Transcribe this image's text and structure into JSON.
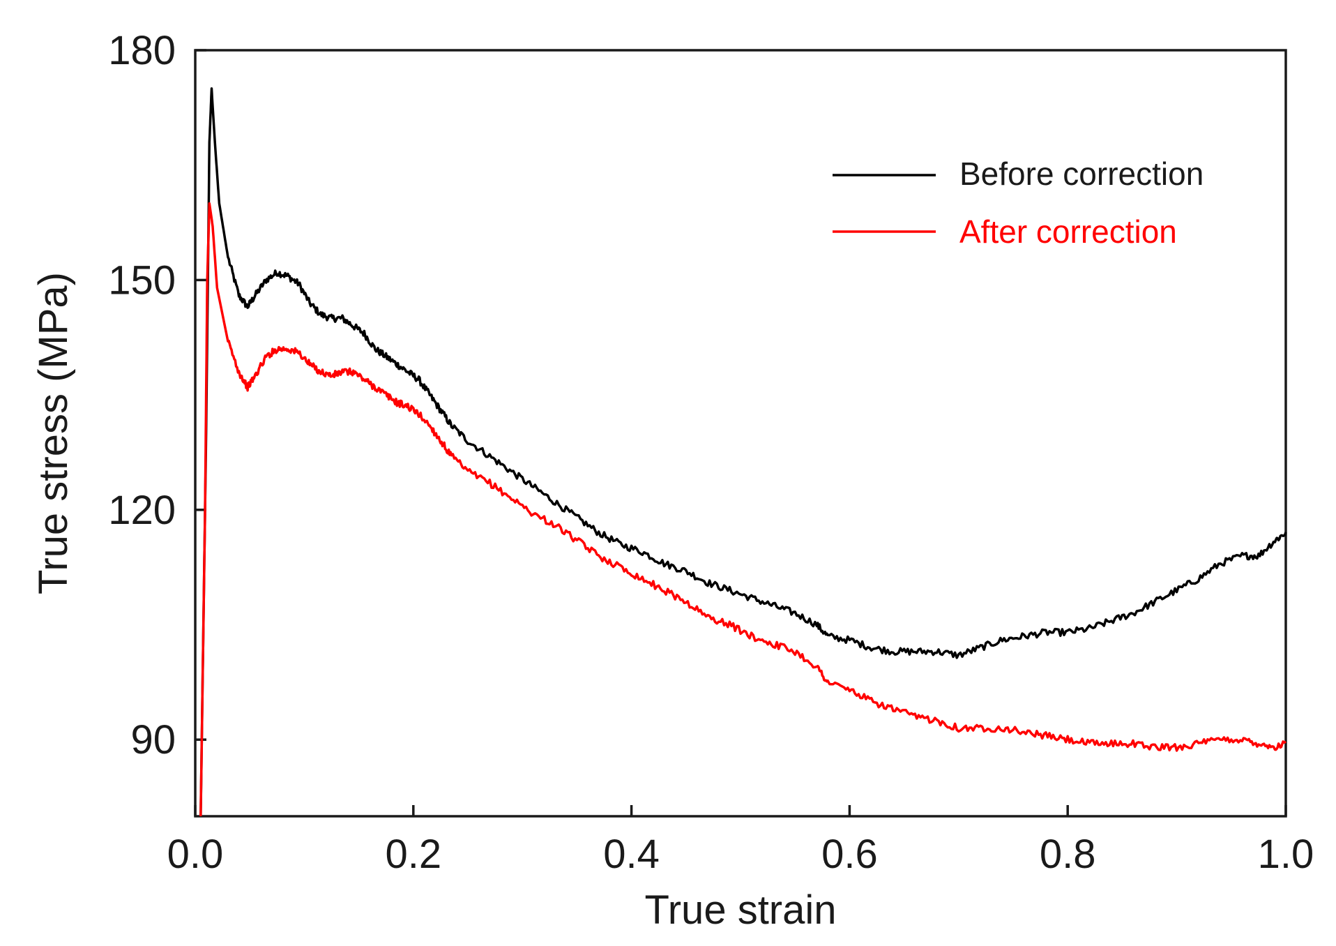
{
  "chart_data": {
    "type": "line",
    "title": "",
    "xlabel": "True strain",
    "ylabel": "True stress (MPa)",
    "xlim": [
      0.0,
      1.0
    ],
    "ylim": [
      80,
      180
    ],
    "x_ticks": [
      0.0,
      0.2,
      0.4,
      0.6,
      0.8,
      1.0
    ],
    "x_tick_labels": [
      "0.0",
      "0.2",
      "0.4",
      "0.6",
      "0.8",
      "1.0"
    ],
    "y_ticks": [
      90,
      120,
      150,
      180
    ],
    "y_tick_labels": [
      "90",
      "120",
      "150",
      "180"
    ],
    "grid": false,
    "legend_position": "top-right",
    "series": [
      {
        "name": "Before correction",
        "color": "#000000",
        "points": [
          [
            0.005,
            80
          ],
          [
            0.01,
            130
          ],
          [
            0.013,
            168
          ],
          [
            0.015,
            175
          ],
          [
            0.018,
            168
          ],
          [
            0.022,
            160
          ],
          [
            0.03,
            153
          ],
          [
            0.04,
            148
          ],
          [
            0.048,
            146.5
          ],
          [
            0.055,
            148
          ],
          [
            0.065,
            150
          ],
          [
            0.075,
            151
          ],
          [
            0.085,
            150.5
          ],
          [
            0.095,
            149.5
          ],
          [
            0.105,
            147
          ],
          [
            0.115,
            145.5
          ],
          [
            0.125,
            145
          ],
          [
            0.135,
            145
          ],
          [
            0.145,
            144
          ],
          [
            0.155,
            143
          ],
          [
            0.165,
            141
          ],
          [
            0.175,
            140
          ],
          [
            0.185,
            139
          ],
          [
            0.195,
            138
          ],
          [
            0.205,
            137
          ],
          [
            0.215,
            135
          ],
          [
            0.225,
            133
          ],
          [
            0.235,
            131
          ],
          [
            0.25,
            129
          ],
          [
            0.27,
            127
          ],
          [
            0.29,
            125
          ],
          [
            0.31,
            123
          ],
          [
            0.33,
            121
          ],
          [
            0.35,
            119
          ],
          [
            0.37,
            117
          ],
          [
            0.39,
            115.5
          ],
          [
            0.41,
            114.5
          ],
          [
            0.43,
            113
          ],
          [
            0.45,
            112
          ],
          [
            0.47,
            110.5
          ],
          [
            0.49,
            109.5
          ],
          [
            0.51,
            108.5
          ],
          [
            0.53,
            107.5
          ],
          [
            0.55,
            106.5
          ],
          [
            0.57,
            105
          ],
          [
            0.58,
            103.5
          ],
          [
            0.6,
            103
          ],
          [
            0.62,
            102
          ],
          [
            0.64,
            101.5
          ],
          [
            0.66,
            101.5
          ],
          [
            0.68,
            101.5
          ],
          [
            0.7,
            101
          ],
          [
            0.72,
            102
          ],
          [
            0.74,
            103
          ],
          [
            0.76,
            103.5
          ],
          [
            0.78,
            104
          ],
          [
            0.8,
            104
          ],
          [
            0.82,
            104.5
          ],
          [
            0.84,
            105.5
          ],
          [
            0.86,
            106.5
          ],
          [
            0.88,
            108
          ],
          [
            0.9,
            109.5
          ],
          [
            0.92,
            111
          ],
          [
            0.94,
            113
          ],
          [
            0.96,
            114
          ],
          [
            0.975,
            114
          ],
          [
            0.99,
            116
          ],
          [
            1.0,
            117
          ]
        ]
      },
      {
        "name": "After correction",
        "color": "#ff0000",
        "points": [
          [
            0.005,
            80
          ],
          [
            0.009,
            120
          ],
          [
            0.011,
            150
          ],
          [
            0.013,
            160
          ],
          [
            0.016,
            157
          ],
          [
            0.02,
            149
          ],
          [
            0.03,
            142
          ],
          [
            0.04,
            138
          ],
          [
            0.048,
            136
          ],
          [
            0.055,
            137.5
          ],
          [
            0.065,
            140
          ],
          [
            0.075,
            141
          ],
          [
            0.085,
            141
          ],
          [
            0.095,
            140.5
          ],
          [
            0.105,
            139
          ],
          [
            0.115,
            138
          ],
          [
            0.125,
            137.5
          ],
          [
            0.135,
            138
          ],
          [
            0.145,
            138
          ],
          [
            0.155,
            137
          ],
          [
            0.165,
            136
          ],
          [
            0.175,
            135
          ],
          [
            0.185,
            134
          ],
          [
            0.195,
            133.5
          ],
          [
            0.205,
            132.5
          ],
          [
            0.215,
            131
          ],
          [
            0.225,
            129
          ],
          [
            0.235,
            127
          ],
          [
            0.25,
            125
          ],
          [
            0.27,
            123.5
          ],
          [
            0.29,
            121.5
          ],
          [
            0.31,
            119.5
          ],
          [
            0.33,
            118
          ],
          [
            0.35,
            116
          ],
          [
            0.37,
            114
          ],
          [
            0.39,
            112.5
          ],
          [
            0.41,
            111
          ],
          [
            0.43,
            109.5
          ],
          [
            0.45,
            108
          ],
          [
            0.47,
            106
          ],
          [
            0.49,
            105
          ],
          [
            0.51,
            103.5
          ],
          [
            0.53,
            102.5
          ],
          [
            0.55,
            101.5
          ],
          [
            0.57,
            99.5
          ],
          [
            0.58,
            97.5
          ],
          [
            0.6,
            96.5
          ],
          [
            0.62,
            95
          ],
          [
            0.64,
            94
          ],
          [
            0.66,
            93
          ],
          [
            0.68,
            92.5
          ],
          [
            0.7,
            91.5
          ],
          [
            0.72,
            91.5
          ],
          [
            0.74,
            91.5
          ],
          [
            0.76,
            91
          ],
          [
            0.78,
            90.5
          ],
          [
            0.8,
            90
          ],
          [
            0.82,
            89.5
          ],
          [
            0.84,
            89.5
          ],
          [
            0.86,
            89.5
          ],
          [
            0.88,
            89
          ],
          [
            0.9,
            89
          ],
          [
            0.92,
            89.5
          ],
          [
            0.94,
            90
          ],
          [
            0.96,
            90
          ],
          [
            0.975,
            89.5
          ],
          [
            0.99,
            89
          ],
          [
            1.0,
            89.5
          ]
        ]
      }
    ]
  }
}
